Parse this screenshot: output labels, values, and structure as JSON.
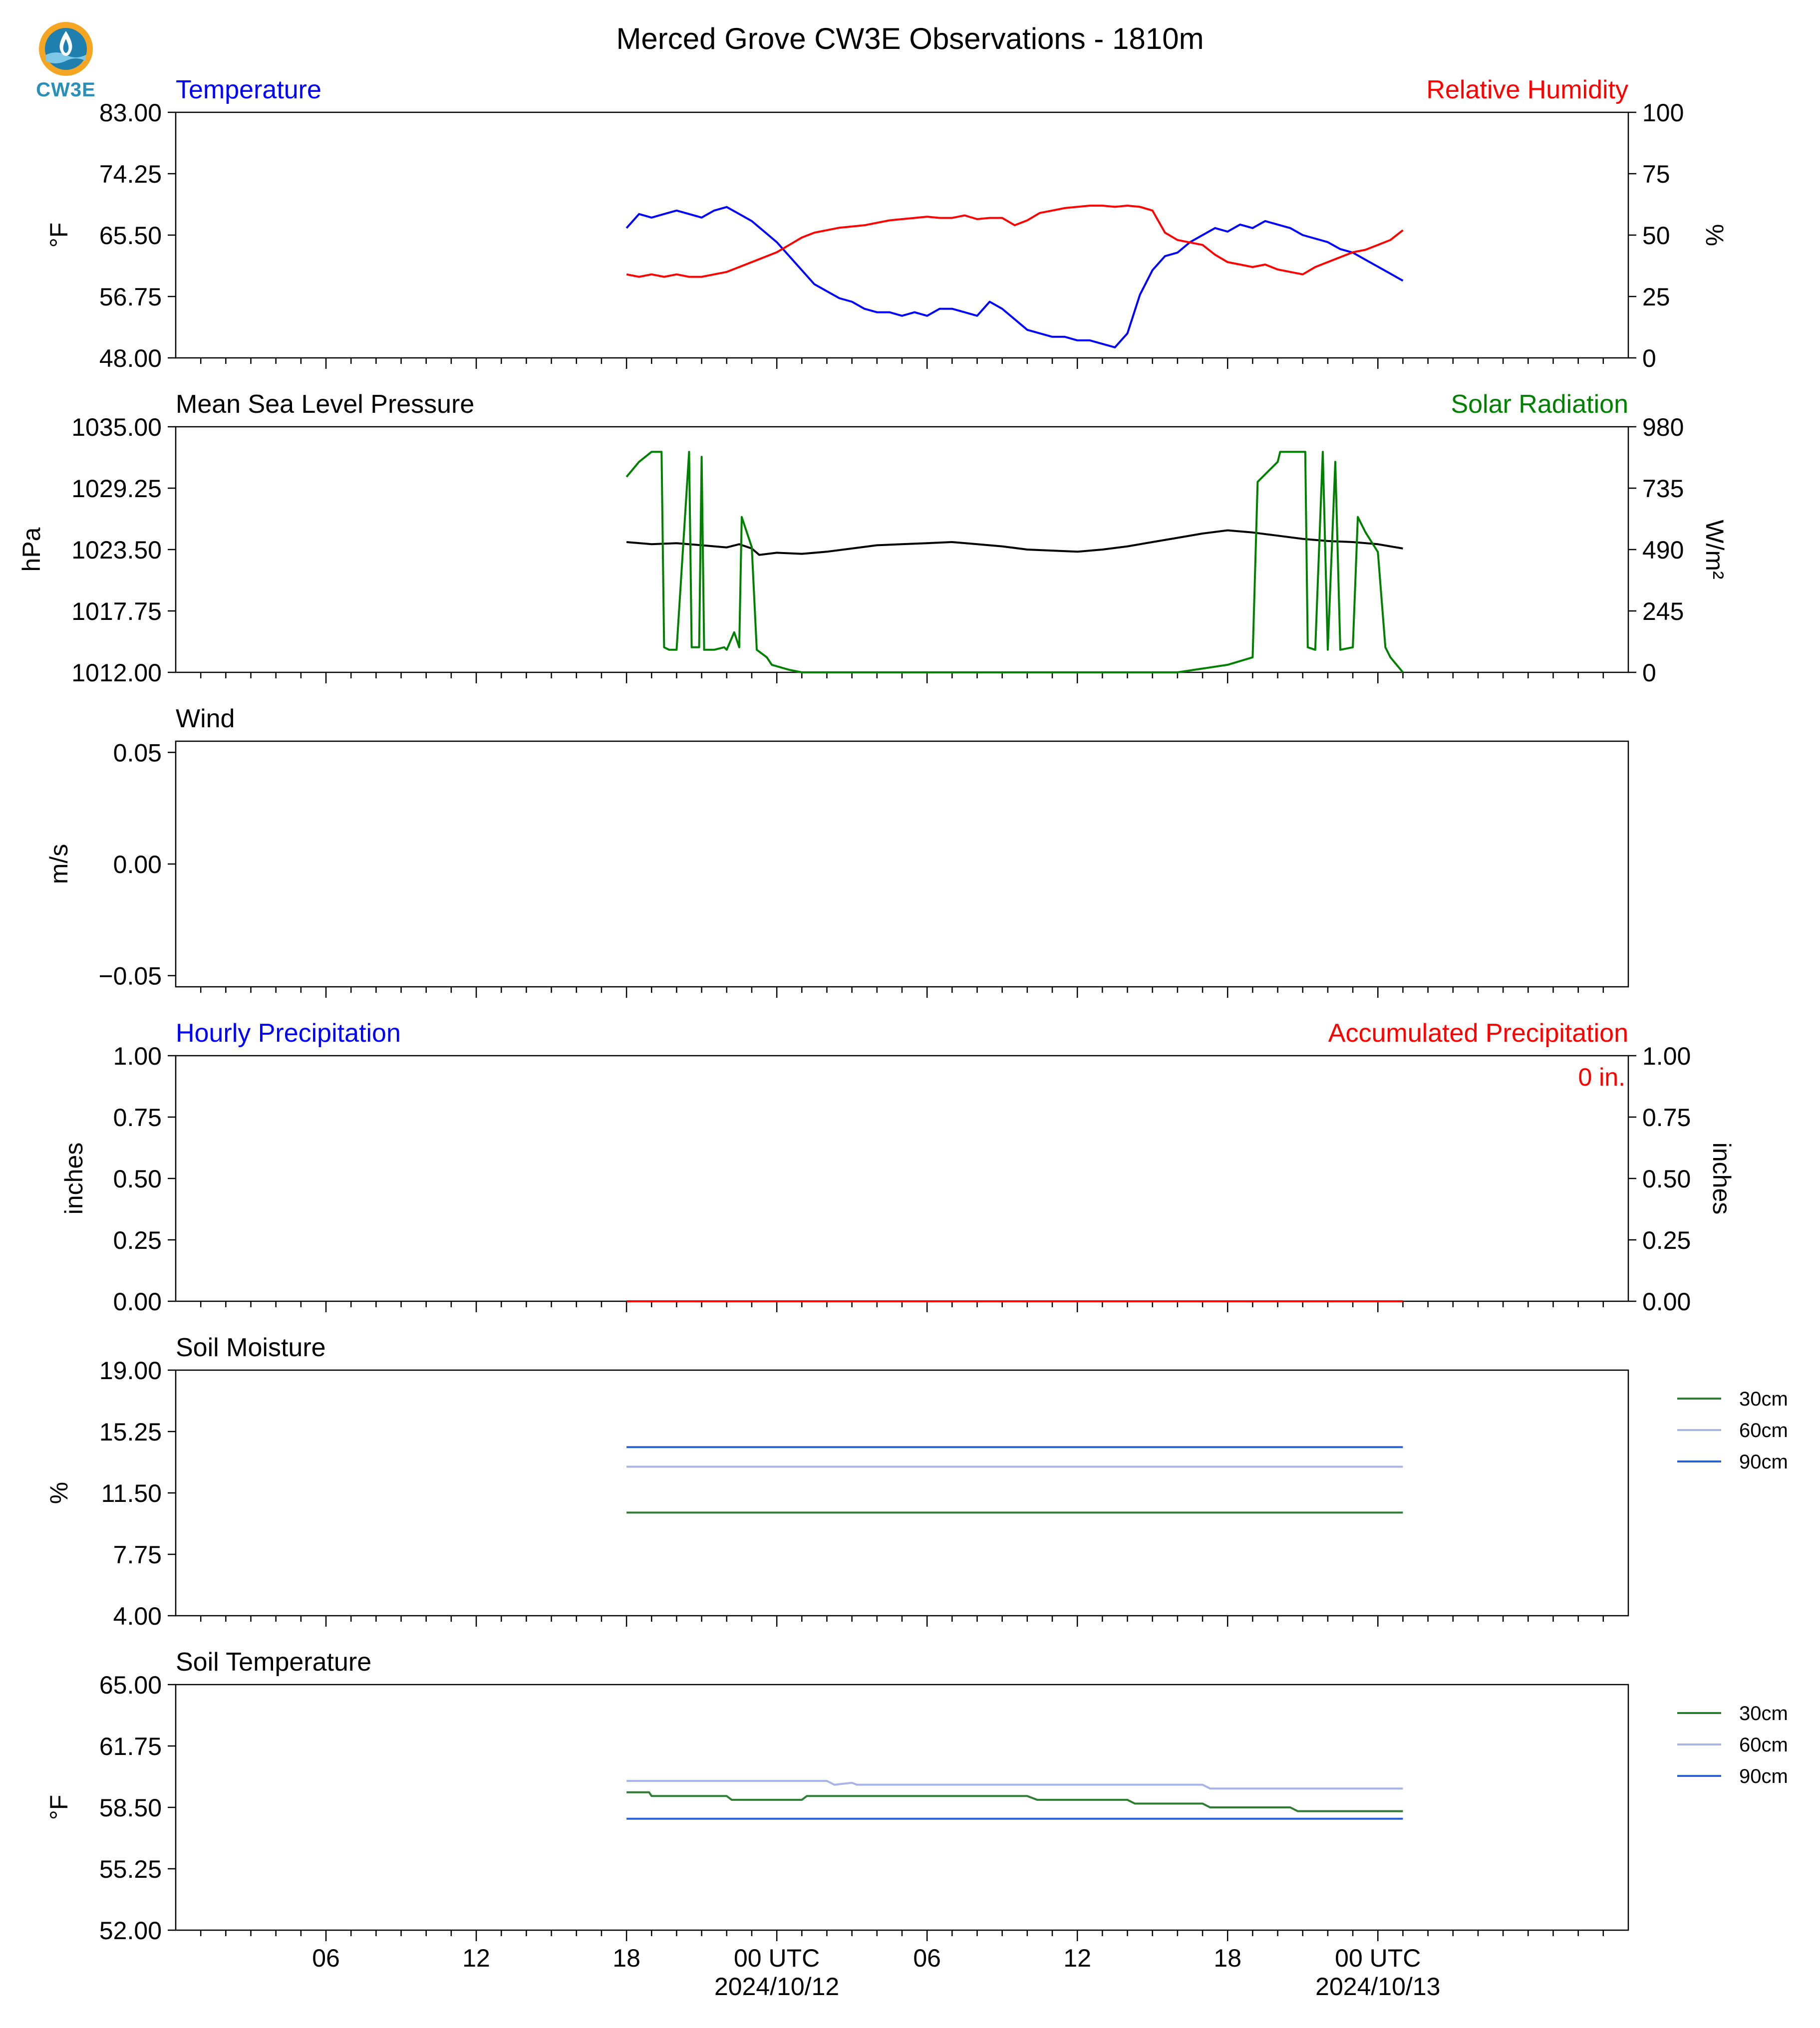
{
  "title": "Merced Grove CW3E Observations - 1810m",
  "logo_text": "CW3E",
  "colors": {
    "blue": "#0000ff",
    "red": "#ff0000",
    "green": "#008000",
    "black": "#000000",
    "sm30": "#2e7d32",
    "sm60": "#a8b4e8",
    "sm90": "#2a62d6"
  },
  "x_axis": {
    "range_hours": [
      0,
      58
    ],
    "ticks": [
      {
        "h": 6,
        "label": "06",
        "sub": ""
      },
      {
        "h": 12,
        "label": "12",
        "sub": ""
      },
      {
        "h": 18,
        "label": "18",
        "sub": ""
      },
      {
        "h": 24,
        "label": "00 UTC",
        "sub": "2024/10/12"
      },
      {
        "h": 30,
        "label": "06",
        "sub": ""
      },
      {
        "h": 36,
        "label": "12",
        "sub": ""
      },
      {
        "h": 42,
        "label": "18",
        "sub": ""
      },
      {
        "h": 48,
        "label": "00 UTC",
        "sub": "2024/10/13"
      }
    ]
  },
  "chart_data": [
    {
      "type": "line",
      "title_left": "Temperature",
      "title_right": "Relative Humidity",
      "ylabel": "°F",
      "ylabel_right": "%",
      "ylim": [
        48,
        83
      ],
      "ylim_right": [
        0,
        100
      ],
      "yticks": [
        "83.00",
        "74.25",
        "65.50",
        "56.75",
        "48.00"
      ],
      "yticks_right": [
        "100",
        "75",
        "50",
        "25",
        "0"
      ],
      "series": [
        {
          "name": "Temperature",
          "axis": "left",
          "color": "blue",
          "x": [
            18,
            18.5,
            19,
            19.5,
            20,
            20.5,
            21,
            21.5,
            22,
            22.5,
            23,
            23.5,
            24,
            24.5,
            25,
            25.5,
            26,
            26.5,
            27,
            27.5,
            28,
            28.5,
            29,
            29.5,
            30,
            30.5,
            31,
            31.5,
            32,
            32.5,
            33,
            33.5,
            34,
            34.5,
            35,
            35.5,
            36,
            36.5,
            37,
            37.5,
            38,
            38.5,
            39,
            39.5,
            40,
            40.5,
            41,
            41.5,
            42,
            42.5,
            43,
            43.5,
            44,
            44.5,
            45,
            45.5,
            46,
            46.5,
            47,
            47.5,
            48,
            48.5,
            49
          ],
          "y": [
            66.5,
            68.5,
            68,
            68.5,
            69,
            68.5,
            68,
            69,
            69.5,
            68.5,
            67.5,
            66,
            64.5,
            62.5,
            60.5,
            58.5,
            57.5,
            56.5,
            56,
            55,
            54.5,
            54.5,
            54,
            54.5,
            54,
            55,
            55,
            54.5,
            54,
            56,
            55,
            53.5,
            52,
            51.5,
            51,
            51,
            50.5,
            50.5,
            50,
            49.5,
            51.5,
            57,
            60.5,
            62.5,
            63,
            64.5,
            65.5,
            66.5,
            66,
            67,
            66.5,
            67.5,
            67,
            66.5,
            65.5,
            65,
            64.5,
            63.5,
            63,
            62,
            61,
            60,
            59
          ]
        },
        {
          "name": "Relative Humidity",
          "axis": "right",
          "color": "red",
          "x": [
            18,
            18.5,
            19,
            19.5,
            20,
            20.5,
            21,
            21.5,
            22,
            22.5,
            23,
            23.5,
            24,
            24.5,
            25,
            25.5,
            26,
            26.5,
            27,
            27.5,
            28,
            28.5,
            29,
            29.5,
            30,
            30.5,
            31,
            31.5,
            32,
            32.5,
            33,
            33.5,
            34,
            34.5,
            35,
            35.5,
            36,
            36.5,
            37,
            37.5,
            38,
            38.5,
            39,
            39.5,
            40,
            40.5,
            41,
            41.5,
            42,
            42.5,
            43,
            43.5,
            44,
            44.5,
            45,
            45.5,
            46,
            46.5,
            47,
            47.5,
            48,
            48.5,
            49
          ],
          "y": [
            34,
            33,
            34,
            33,
            34,
            33,
            33,
            34,
            35,
            37,
            39,
            41,
            43,
            46,
            49,
            51,
            52,
            53,
            53.5,
            54,
            55,
            56,
            56.5,
            57,
            57.5,
            57,
            57,
            58,
            56.5,
            57,
            57,
            54,
            56,
            59,
            60,
            61,
            61.5,
            62,
            62,
            61.5,
            62,
            61.5,
            60,
            51,
            48,
            47,
            46,
            42,
            39,
            38,
            37,
            38,
            36,
            35,
            34,
            37,
            39,
            41,
            43,
            44,
            46,
            48,
            52
          ]
        },
        {
          "name": "",
          "axis": "none",
          "color": "black",
          "x": [],
          "y": []
        }
      ]
    },
    {
      "type": "line",
      "title_left": "Mean Sea Level Pressure",
      "title_right": "Solar Radiation",
      "ylabel": "hPa",
      "ylabel_right": "W/m²",
      "ylim": [
        1012,
        1035
      ],
      "ylim_right": [
        0,
        980
      ],
      "yticks": [
        "1035.00",
        "1029.25",
        "1023.50",
        "1017.75",
        "1012.00"
      ],
      "yticks_right": [
        "980",
        "735",
        "490",
        "245",
        "0"
      ],
      "series": [
        {
          "name": "Mean Sea Level Pressure",
          "axis": "left",
          "color": "black",
          "x": [
            18,
            19,
            20,
            21,
            22,
            22.5,
            23,
            23.3,
            24,
            25,
            26,
            27,
            28,
            29,
            30,
            31,
            32,
            33,
            34,
            35,
            36,
            37,
            38,
            39,
            40,
            41,
            42,
            43,
            44,
            45,
            46,
            47,
            48,
            48.5,
            49
          ],
          "y": [
            1024.2,
            1024.0,
            1024.1,
            1023.9,
            1023.7,
            1024.0,
            1023.6,
            1023.0,
            1023.2,
            1023.1,
            1023.3,
            1023.6,
            1023.9,
            1024.0,
            1024.1,
            1024.2,
            1024.0,
            1023.8,
            1023.5,
            1023.4,
            1023.3,
            1023.5,
            1023.8,
            1024.2,
            1024.6,
            1025.0,
            1025.3,
            1025.1,
            1024.8,
            1024.5,
            1024.3,
            1024.2,
            1024.0,
            1023.8,
            1023.6
          ]
        },
        {
          "name": "Solar Radiation",
          "axis": "right",
          "color": "green",
          "x": [
            18,
            18.5,
            19,
            19.4,
            19.5,
            19.7,
            20,
            20.5,
            20.6,
            20.9,
            21,
            21.1,
            21.5,
            21.9,
            22,
            22.3,
            22.5,
            22.6,
            22.8,
            23,
            23.2,
            23.6,
            23.8,
            24.5,
            25,
            26,
            30,
            36,
            40,
            42,
            43,
            43.2,
            44,
            44.1,
            45.1,
            45.2,
            45.5,
            45.8,
            46,
            46.3,
            46.5,
            47,
            47.2,
            47.5,
            48,
            48.3,
            48.5,
            49
          ],
          "y": [
            780,
            840,
            880,
            880,
            100,
            90,
            90,
            880,
            100,
            100,
            860,
            90,
            90,
            100,
            90,
            160,
            100,
            620,
            560,
            500,
            90,
            60,
            30,
            10,
            0,
            0,
            0,
            0,
            0,
            30,
            60,
            760,
            840,
            880,
            880,
            100,
            90,
            880,
            90,
            840,
            90,
            100,
            620,
            560,
            480,
            100,
            60,
            0
          ]
        },
        {
          "name": "",
          "axis": "none",
          "color": "black",
          "x": [],
          "y": []
        }
      ]
    },
    {
      "type": "line",
      "title_left": "Wind",
      "title_right": "",
      "ylabel": "m/s",
      "ylabel_right": "",
      "ylim": [
        -0.055,
        0.055
      ],
      "ylim_right": null,
      "yticks": [
        "0.05",
        "0.00",
        "−0.05"
      ],
      "yticks_right": [],
      "series": []
    },
    {
      "type": "bar",
      "title_left": "Hourly Precipitation",
      "title_right": "Accumulated Precipitation",
      "ylabel": "inches",
      "ylabel_right": "inches",
      "annotation": "0 in.",
      "ylim": [
        0,
        1
      ],
      "ylim_right": [
        0,
        1
      ],
      "yticks": [
        "1.00",
        "0.75",
        "0.50",
        "0.25",
        "0.00"
      ],
      "yticks_right": [
        "1.00",
        "0.75",
        "0.50",
        "0.25",
        "0.00"
      ],
      "series": [
        {
          "name": "Accumulated Precipitation",
          "axis": "right",
          "color": "red",
          "x": [
            18,
            49
          ],
          "y": [
            0,
            0
          ]
        }
      ]
    },
    {
      "type": "line",
      "title_left": "Soil Moisture",
      "title_right": "",
      "ylabel": "%",
      "ylabel_right": "",
      "ylim": [
        4,
        19
      ],
      "ylim_right": null,
      "yticks": [
        "19.00",
        "15.25",
        "11.50",
        "7.75",
        "4.00"
      ],
      "yticks_right": [],
      "legend": [
        "30cm",
        "60cm",
        "90cm"
      ],
      "series": [
        {
          "name": "30cm",
          "axis": "left",
          "color": "sm30",
          "x": [
            18,
            22,
            26,
            30,
            34,
            38,
            42,
            46,
            49
          ],
          "y": [
            10.3,
            10.3,
            10.3,
            10.3,
            10.3,
            10.3,
            10.3,
            10.3,
            10.3
          ]
        },
        {
          "name": "60cm",
          "axis": "left",
          "color": "sm60",
          "x": [
            18,
            22,
            26,
            30,
            34,
            38,
            42,
            46,
            49
          ],
          "y": [
            13.1,
            13.1,
            13.1,
            13.1,
            13.1,
            13.1,
            13.1,
            13.1,
            13.1
          ]
        },
        {
          "name": "90cm",
          "axis": "left",
          "color": "sm90",
          "x": [
            18,
            22,
            26,
            30,
            34,
            38,
            42,
            46,
            49
          ],
          "y": [
            14.3,
            14.3,
            14.3,
            14.3,
            14.3,
            14.3,
            14.3,
            14.3,
            14.3
          ]
        }
      ]
    },
    {
      "type": "line",
      "title_left": "Soil Temperature",
      "title_right": "",
      "ylabel": "°F",
      "ylabel_right": "",
      "ylim": [
        52,
        65
      ],
      "ylim_right": null,
      "yticks": [
        "65.00",
        "61.75",
        "58.50",
        "55.25",
        "52.00"
      ],
      "yticks_right": [],
      "legend": [
        "30cm",
        "60cm",
        "90cm"
      ],
      "series": [
        {
          "name": "30cm",
          "axis": "left",
          "color": "sm30",
          "x": [
            18,
            18.9,
            19,
            22,
            22.2,
            25,
            25.2,
            34,
            34.4,
            38,
            38.3,
            41,
            41.3,
            44.5,
            44.8,
            49
          ],
          "y": [
            59.3,
            59.3,
            59.1,
            59.1,
            58.9,
            58.9,
            59.1,
            59.1,
            58.9,
            58.9,
            58.7,
            58.7,
            58.5,
            58.5,
            58.3,
            58.3
          ]
        },
        {
          "name": "60cm",
          "axis": "left",
          "color": "sm60",
          "x": [
            18,
            26,
            26.3,
            27,
            27.2,
            41,
            41.3,
            49
          ],
          "y": [
            59.9,
            59.9,
            59.7,
            59.8,
            59.7,
            59.7,
            59.5,
            59.5
          ]
        },
        {
          "name": "90cm",
          "axis": "left",
          "color": "sm90",
          "x": [
            18,
            49
          ],
          "y": [
            57.9,
            57.9
          ]
        }
      ]
    }
  ]
}
